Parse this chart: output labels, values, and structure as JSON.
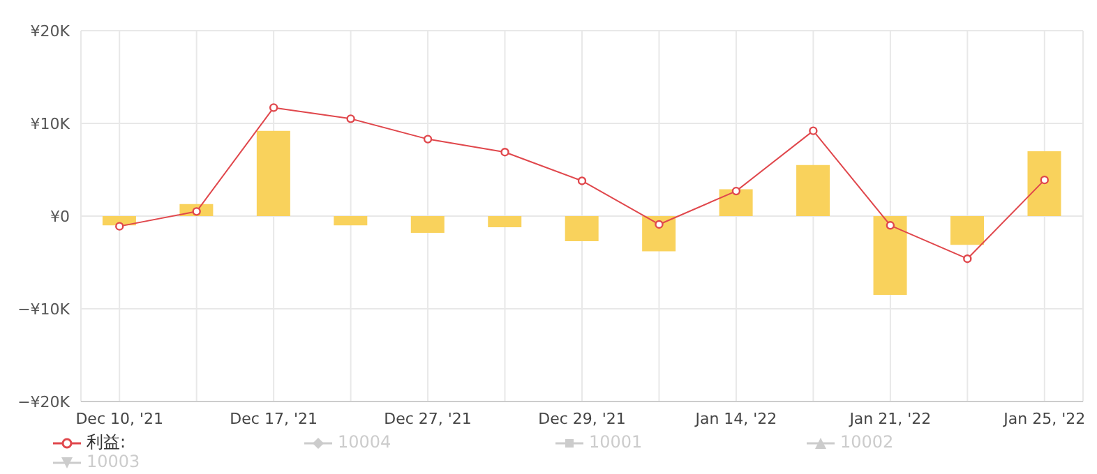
{
  "chart_data": {
    "type": "bar",
    "categories": [
      "Dec 10, '21",
      null,
      "Dec 17, '21",
      null,
      "Dec 27, '21",
      null,
      "Dec 29, '21",
      null,
      "Jan 14, '22",
      null,
      "Jan 21, '22",
      null,
      "Jan 25, '22"
    ],
    "series": [
      {
        "color": "#f9d25c",
        "values": [
          -1.0,
          1.3,
          9.2,
          -1.0,
          -1.8,
          -1.2,
          -2.7,
          -3.8,
          2.9,
          5.5,
          -8.5,
          -3.1,
          7.0
        ]
      },
      {
        "type": "line",
        "name": "利益:",
        "color": "#e0474c",
        "marker": "circle",
        "values": [
          -1.1,
          0.5,
          11.7,
          10.5,
          8.3,
          6.9,
          3.8,
          -0.9,
          2.7,
          9.2,
          -1.0,
          -4.6,
          3.9
        ]
      },
      {
        "type": "line",
        "name": "10004",
        "color": "#cccccc",
        "marker": "diamond",
        "values": [
          null,
          null,
          null,
          null,
          null,
          null,
          null,
          null,
          null,
          null,
          null,
          null,
          null
        ]
      },
      {
        "type": "line",
        "name": "10001",
        "color": "#cccccc",
        "marker": "square",
        "values": [
          null,
          null,
          null,
          null,
          null,
          null,
          null,
          null,
          null,
          null,
          null,
          null,
          null
        ]
      },
      {
        "type": "line",
        "name": "10002",
        "color": "#cccccc",
        "marker": "triangle",
        "values": [
          null,
          null,
          null,
          null,
          null,
          null,
          null,
          null,
          null,
          null,
          null,
          null,
          null
        ]
      },
      {
        "type": "line",
        "name": "10003",
        "color": "#cccccc",
        "marker": "triangle-down",
        "values": [
          null,
          null,
          null,
          null,
          null,
          null,
          null,
          null,
          null,
          null,
          null,
          null,
          null
        ]
      }
    ],
    "ylim": [
      -20,
      20
    ],
    "yticks": [
      {
        "value": -20,
        "label": "−¥20K"
      },
      {
        "value": -10,
        "label": "−¥10K"
      },
      {
        "value": 0,
        "label": "¥0"
      },
      {
        "value": 10,
        "label": "¥10K"
      },
      {
        "value": 20,
        "label": "¥20K"
      }
    ],
    "grid": true,
    "legend": "bottom"
  }
}
